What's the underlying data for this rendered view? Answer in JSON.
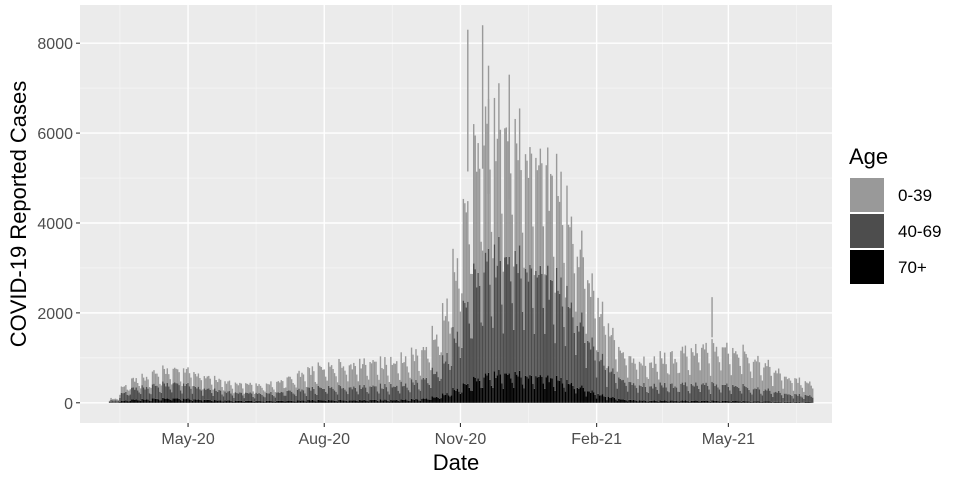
{
  "chart_data": {
    "type": "bar",
    "stacked": true,
    "xlabel": "Date",
    "ylabel": "COVID-19 Reported Cases",
    "ylim": [
      -450,
      8850
    ],
    "xlim": [
      "2020-02-18",
      "2021-07-10"
    ],
    "grid": true,
    "x_ticks": [
      {
        "date": "2020-05-01",
        "label": "May-20"
      },
      {
        "date": "2020-08-01",
        "label": "Aug-20"
      },
      {
        "date": "2020-11-01",
        "label": "Nov-20"
      },
      {
        "date": "2021-02-01",
        "label": "Feb-21"
      },
      {
        "date": "2021-05-01",
        "label": "May-21"
      }
    ],
    "y_ticks": [
      0,
      2000,
      4000,
      6000,
      8000
    ],
    "legend": {
      "title": "Age",
      "position": "right"
    },
    "series": [
      {
        "name": "0-39",
        "color": "#999999"
      },
      {
        "name": "40-69",
        "color": "#4d4d4d"
      },
      {
        "name": "70+",
        "color": "#000000"
      }
    ],
    "series_order_bottom_to_top": [
      "70+",
      "40-69",
      "0-39"
    ],
    "weekly_totals": {
      "note": "approximate weekly average of daily totals read from chart",
      "weeks": [
        {
          "week_start": "2020-03-09",
          "70+": 10,
          "40-69": 40,
          "0-39": 30
        },
        {
          "week_start": "2020-03-16",
          "70+": 40,
          "40-69": 150,
          "0-39": 120
        },
        {
          "week_start": "2020-03-23",
          "70+": 60,
          "40-69": 220,
          "0-39": 170
        },
        {
          "week_start": "2020-03-30",
          "70+": 70,
          "40-69": 240,
          "0-39": 200
        },
        {
          "week_start": "2020-04-06",
          "70+": 80,
          "40-69": 260,
          "0-39": 240
        },
        {
          "week_start": "2020-04-13",
          "70+": 80,
          "40-69": 270,
          "0-39": 260
        },
        {
          "week_start": "2020-04-20",
          "70+": 85,
          "40-69": 300,
          "0-39": 280
        },
        {
          "week_start": "2020-04-27",
          "70+": 80,
          "40-69": 290,
          "0-39": 290
        },
        {
          "week_start": "2020-05-04",
          "70+": 70,
          "40-69": 260,
          "0-39": 270
        },
        {
          "week_start": "2020-05-11",
          "70+": 60,
          "40-69": 230,
          "0-39": 250
        },
        {
          "week_start": "2020-05-18",
          "70+": 50,
          "40-69": 210,
          "0-39": 230
        },
        {
          "week_start": "2020-05-25",
          "70+": 45,
          "40-69": 180,
          "0-39": 200
        },
        {
          "week_start": "2020-06-01",
          "70+": 40,
          "40-69": 160,
          "0-39": 180
        },
        {
          "week_start": "2020-06-08",
          "70+": 35,
          "40-69": 150,
          "0-39": 170
        },
        {
          "week_start": "2020-06-15",
          "70+": 35,
          "40-69": 150,
          "0-39": 170
        },
        {
          "week_start": "2020-06-22",
          "70+": 35,
          "40-69": 150,
          "0-39": 180
        },
        {
          "week_start": "2020-06-29",
          "70+": 40,
          "40-69": 170,
          "0-39": 220
        },
        {
          "week_start": "2020-07-06",
          "70+": 40,
          "40-69": 190,
          "0-39": 260
        },
        {
          "week_start": "2020-07-13",
          "70+": 45,
          "40-69": 210,
          "0-39": 320
        },
        {
          "week_start": "2020-07-20",
          "70+": 50,
          "40-69": 230,
          "0-39": 360
        },
        {
          "week_start": "2020-07-27",
          "70+": 50,
          "40-69": 240,
          "0-39": 400
        },
        {
          "week_start": "2020-08-03",
          "70+": 50,
          "40-69": 250,
          "0-39": 420
        },
        {
          "week_start": "2020-08-10",
          "70+": 50,
          "40-69": 250,
          "0-39": 430
        },
        {
          "week_start": "2020-08-17",
          "70+": 50,
          "40-69": 260,
          "0-39": 450
        },
        {
          "week_start": "2020-08-24",
          "70+": 50,
          "40-69": 260,
          "0-39": 460
        },
        {
          "week_start": "2020-08-31",
          "70+": 55,
          "40-69": 270,
          "0-39": 480
        },
        {
          "week_start": "2020-09-07",
          "70+": 55,
          "40-69": 270,
          "0-39": 460
        },
        {
          "week_start": "2020-09-14",
          "70+": 55,
          "40-69": 280,
          "0-39": 480
        },
        {
          "week_start": "2020-09-21",
          "70+": 60,
          "40-69": 300,
          "0-39": 500
        },
        {
          "week_start": "2020-09-28",
          "70+": 65,
          "40-69": 330,
          "0-39": 530
        },
        {
          "week_start": "2020-10-05",
          "70+": 80,
          "40-69": 380,
          "0-39": 570
        },
        {
          "week_start": "2020-10-12",
          "70+": 110,
          "40-69": 480,
          "0-39": 700
        },
        {
          "week_start": "2020-10-19",
          "70+": 170,
          "40-69": 700,
          "0-39": 950
        },
        {
          "week_start": "2020-10-26",
          "70+": 260,
          "40-69": 1050,
          "0-39": 1350
        },
        {
          "week_start": "2020-11-02",
          "70+": 360,
          "40-69": 1550,
          "0-39": 1900
        },
        {
          "week_start": "2020-11-09",
          "70+": 450,
          "40-69": 1950,
          "0-39": 2400
        },
        {
          "week_start": "2020-11-16",
          "70+": 520,
          "40-69": 2150,
          "0-39": 2600
        },
        {
          "week_start": "2020-11-23",
          "70+": 560,
          "40-69": 2250,
          "0-39": 2600
        },
        {
          "week_start": "2020-11-30",
          "70+": 570,
          "40-69": 2250,
          "0-39": 2500
        },
        {
          "week_start": "2020-12-07",
          "70+": 560,
          "40-69": 2200,
          "0-39": 2400
        },
        {
          "week_start": "2020-12-14",
          "70+": 540,
          "40-69": 2150,
          "0-39": 2300
        },
        {
          "week_start": "2020-12-21",
          "70+": 520,
          "40-69": 2050,
          "0-39": 2200
        },
        {
          "week_start": "2020-12-28",
          "70+": 490,
          "40-69": 1950,
          "0-39": 2100
        },
        {
          "week_start": "2021-01-04",
          "70+": 450,
          "40-69": 1800,
          "0-39": 1900
        },
        {
          "week_start": "2021-01-11",
          "70+": 380,
          "40-69": 1550,
          "0-39": 1650
        },
        {
          "week_start": "2021-01-18",
          "70+": 300,
          "40-69": 1250,
          "0-39": 1400
        },
        {
          "week_start": "2021-01-25",
          "70+": 220,
          "40-69": 950,
          "0-39": 1150
        },
        {
          "week_start": "2021-02-01",
          "70+": 150,
          "40-69": 700,
          "0-39": 900
        },
        {
          "week_start": "2021-02-08",
          "70+": 100,
          "40-69": 500,
          "0-39": 700
        },
        {
          "week_start": "2021-02-15",
          "70+": 70,
          "40-69": 400,
          "0-39": 560
        },
        {
          "week_start": "2021-02-22",
          "70+": 55,
          "40-69": 330,
          "0-39": 480
        },
        {
          "week_start": "2021-03-01",
          "70+": 45,
          "40-69": 300,
          "0-39": 460
        },
        {
          "week_start": "2021-03-08",
          "70+": 40,
          "40-69": 290,
          "0-39": 470
        },
        {
          "week_start": "2021-03-15",
          "70+": 40,
          "40-69": 300,
          "0-39": 520
        },
        {
          "week_start": "2021-03-22",
          "70+": 40,
          "40-69": 310,
          "0-39": 580
        },
        {
          "week_start": "2021-03-29",
          "70+": 40,
          "40-69": 320,
          "0-39": 640
        },
        {
          "week_start": "2021-04-05",
          "70+": 40,
          "40-69": 330,
          "0-39": 700
        },
        {
          "week_start": "2021-04-12",
          "70+": 40,
          "40-69": 330,
          "0-39": 730
        },
        {
          "week_start": "2021-04-19",
          "70+": 40,
          "40-69": 320,
          "0-39": 730
        },
        {
          "week_start": "2021-04-26",
          "70+": 35,
          "40-69": 310,
          "0-39": 720
        },
        {
          "week_start": "2021-05-03",
          "70+": 35,
          "40-69": 300,
          "0-39": 690
        },
        {
          "week_start": "2021-05-10",
          "70+": 30,
          "40-69": 280,
          "0-39": 640
        },
        {
          "week_start": "2021-05-17",
          "70+": 30,
          "40-69": 250,
          "0-39": 560
        },
        {
          "week_start": "2021-05-24",
          "70+": 25,
          "40-69": 220,
          "0-39": 480
        },
        {
          "week_start": "2021-05-31",
          "70+": 20,
          "40-69": 190,
          "0-39": 400
        },
        {
          "week_start": "2021-06-07",
          "70+": 18,
          "40-69": 160,
          "0-39": 330
        },
        {
          "week_start": "2021-06-14",
          "70+": 15,
          "40-69": 140,
          "0-39": 280
        },
        {
          "week_start": "2021-06-21",
          "70+": 15,
          "40-69": 120,
          "0-39": 240
        }
      ]
    },
    "notable_daily_peaks": [
      {
        "date": "2020-11-06",
        "total": 8300
      },
      {
        "date": "2020-11-16",
        "total": 8400
      },
      {
        "date": "2020-11-20",
        "total": 7500
      },
      {
        "date": "2020-12-04",
        "total": 7300
      },
      {
        "date": "2021-04-20",
        "total": 2350
      }
    ]
  }
}
